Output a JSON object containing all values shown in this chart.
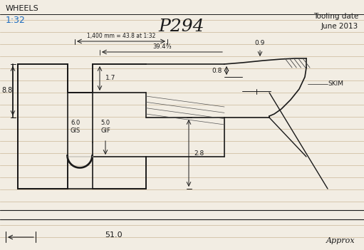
{
  "title": "P294",
  "subtitle_left": "WHEELS",
  "subtitle_scale": "1:32",
  "top_right": "Tooling date\nJune 2013",
  "bg_color": "#f2ede3",
  "line_color": "#1a1a1a",
  "line_color_blue": "#1a6abf",
  "figsize": [
    5.11,
    3.51
  ],
  "dpi": 100,
  "annotations": {
    "dim1": "1,400 mm = 43.8 at 1:32",
    "dim2": "39.4⅓",
    "dim_88": "8.8",
    "dim_17": "1.7",
    "dim_09": "0.9",
    "dim_08": "0.8",
    "dim_28": "2.8",
    "dim_60": "6.0\nGIS",
    "dim_50": "5.0\nGIF",
    "dim_51": "51.0",
    "label_skim": "SKIM"
  }
}
